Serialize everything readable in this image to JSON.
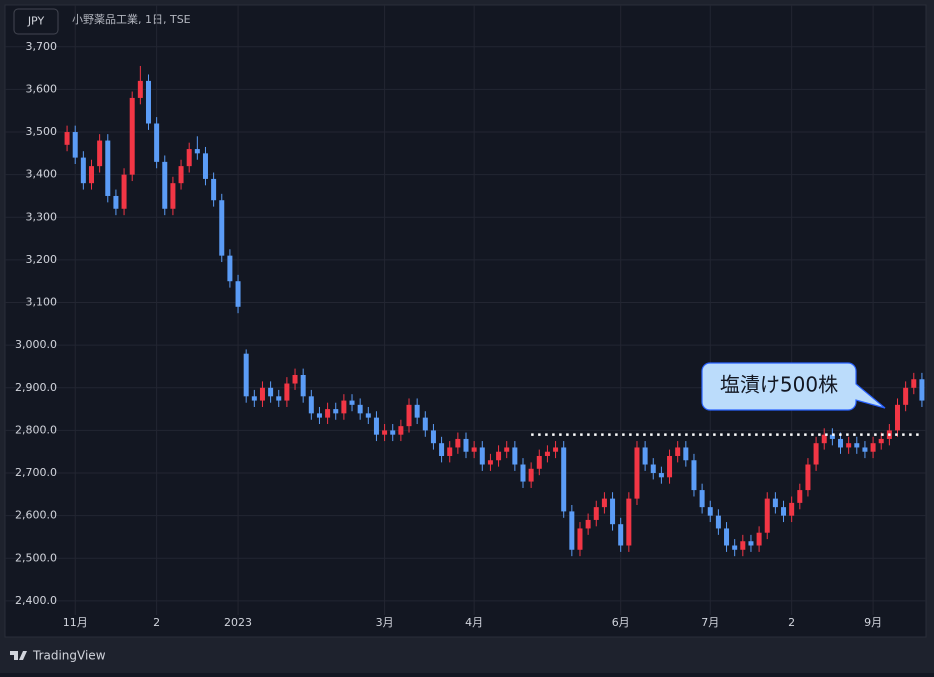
{
  "header": {
    "currency": "JPY",
    "title": "小野薬品工業, 1日, TSE"
  },
  "footer": {
    "brand": "TradingView"
  },
  "chart_data": {
    "type": "candlestick",
    "up_color": "#f23645",
    "down_color": "#5b9cf6",
    "ylim": [
      2374,
      3798
    ],
    "yticks": [
      {
        "value": 2400,
        "label": "2,400.0"
      },
      {
        "value": 2500,
        "label": "2,500.0"
      },
      {
        "value": 2600,
        "label": "2,600.0"
      },
      {
        "value": 2700,
        "label": "2,700.0"
      },
      {
        "value": 2800,
        "label": "2,800.0"
      },
      {
        "value": 2900,
        "label": "2,900.0"
      },
      {
        "value": 3000,
        "label": "3,000.0"
      },
      {
        "value": 3100,
        "label": "3,100"
      },
      {
        "value": 3200,
        "label": "3,200"
      },
      {
        "value": 3300,
        "label": "3,300"
      },
      {
        "value": 3400,
        "label": "3,400"
      },
      {
        "value": 3500,
        "label": "3,500"
      },
      {
        "value": 3600,
        "label": "3,600"
      },
      {
        "value": 3700,
        "label": "3,700"
      }
    ],
    "grid": true,
    "categories": [
      null,
      "11月",
      null,
      null,
      null,
      null,
      null,
      null,
      null,
      null,
      null,
      "2",
      null,
      null,
      null,
      null,
      null,
      null,
      null,
      null,
      null,
      "2023",
      null,
      null,
      null,
      null,
      null,
      null,
      null,
      null,
      null,
      null,
      null,
      null,
      null,
      null,
      null,
      null,
      null,
      "3月",
      null,
      null,
      null,
      null,
      null,
      null,
      null,
      null,
      null,
      null,
      "4月",
      null,
      null,
      null,
      null,
      null,
      null,
      null,
      null,
      null,
      null,
      null,
      null,
      null,
      null,
      null,
      null,
      null,
      "6月",
      null,
      null,
      null,
      null,
      null,
      null,
      null,
      null,
      null,
      null,
      "7月",
      null,
      null,
      null,
      null,
      null,
      null,
      null,
      null,
      null,
      "2",
      null,
      null,
      null,
      null,
      null,
      null,
      null,
      null,
      null,
      "9月",
      null,
      null,
      null,
      null,
      null,
      null
    ],
    "ohlc": [
      [
        3470,
        3515,
        3455,
        3500
      ],
      [
        3500,
        3515,
        3425,
        3440
      ],
      [
        3440,
        3455,
        3365,
        3380
      ],
      [
        3380,
        3435,
        3365,
        3420
      ],
      [
        3420,
        3495,
        3405,
        3480
      ],
      [
        3480,
        3495,
        3335,
        3350
      ],
      [
        3350,
        3365,
        3305,
        3320
      ],
      [
        3320,
        3415,
        3305,
        3400
      ],
      [
        3400,
        3595,
        3385,
        3580
      ],
      [
        3580,
        3655,
        3565,
        3620
      ],
      [
        3620,
        3635,
        3505,
        3520
      ],
      [
        3520,
        3535,
        3415,
        3430
      ],
      [
        3430,
        3445,
        3305,
        3320
      ],
      [
        3320,
        3395,
        3305,
        3380
      ],
      [
        3380,
        3435,
        3365,
        3420
      ],
      [
        3420,
        3475,
        3405,
        3460
      ],
      [
        3460,
        3490,
        3435,
        3450
      ],
      [
        3450,
        3465,
        3375,
        3390
      ],
      [
        3390,
        3405,
        3325,
        3340
      ],
      [
        3340,
        3355,
        3195,
        3210
      ],
      [
        3210,
        3225,
        3135,
        3150
      ],
      [
        3150,
        3165,
        3075,
        3090
      ],
      [
        2980,
        2990,
        2865,
        2880
      ],
      [
        2880,
        2895,
        2855,
        2870
      ],
      [
        2870,
        2915,
        2855,
        2900
      ],
      [
        2900,
        2915,
        2865,
        2880
      ],
      [
        2880,
        2895,
        2855,
        2870
      ],
      [
        2870,
        2925,
        2855,
        2910
      ],
      [
        2910,
        2945,
        2895,
        2930
      ],
      [
        2930,
        2945,
        2865,
        2880
      ],
      [
        2880,
        2895,
        2825,
        2840
      ],
      [
        2840,
        2855,
        2815,
        2830
      ],
      [
        2830,
        2865,
        2815,
        2850
      ],
      [
        2850,
        2865,
        2825,
        2840
      ],
      [
        2840,
        2885,
        2825,
        2870
      ],
      [
        2870,
        2885,
        2845,
        2860
      ],
      [
        2860,
        2875,
        2825,
        2840
      ],
      [
        2840,
        2855,
        2815,
        2830
      ],
      [
        2830,
        2845,
        2775,
        2790
      ],
      [
        2790,
        2815,
        2775,
        2800
      ],
      [
        2800,
        2815,
        2775,
        2790
      ],
      [
        2790,
        2825,
        2775,
        2810
      ],
      [
        2810,
        2875,
        2795,
        2860
      ],
      [
        2860,
        2875,
        2815,
        2830
      ],
      [
        2830,
        2845,
        2785,
        2800
      ],
      [
        2800,
        2815,
        2755,
        2770
      ],
      [
        2770,
        2785,
        2725,
        2740
      ],
      [
        2740,
        2775,
        2725,
        2760
      ],
      [
        2760,
        2795,
        2745,
        2780
      ],
      [
        2780,
        2795,
        2735,
        2750
      ],
      [
        2750,
        2775,
        2735,
        2760
      ],
      [
        2760,
        2775,
        2705,
        2720
      ],
      [
        2720,
        2745,
        2705,
        2730
      ],
      [
        2730,
        2765,
        2715,
        2750
      ],
      [
        2750,
        2775,
        2735,
        2760
      ],
      [
        2760,
        2775,
        2705,
        2720
      ],
      [
        2720,
        2735,
        2665,
        2680
      ],
      [
        2680,
        2725,
        2665,
        2710
      ],
      [
        2710,
        2755,
        2695,
        2740
      ],
      [
        2740,
        2765,
        2725,
        2750
      ],
      [
        2750,
        2775,
        2735,
        2760
      ],
      [
        2760,
        2775,
        2595,
        2610
      ],
      [
        2610,
        2625,
        2505,
        2520
      ],
      [
        2520,
        2585,
        2505,
        2570
      ],
      [
        2570,
        2605,
        2555,
        2590
      ],
      [
        2590,
        2635,
        2575,
        2620
      ],
      [
        2620,
        2655,
        2605,
        2640
      ],
      [
        2640,
        2655,
        2565,
        2580
      ],
      [
        2580,
        2595,
        2515,
        2530
      ],
      [
        2530,
        2655,
        2515,
        2640
      ],
      [
        2640,
        2775,
        2625,
        2760
      ],
      [
        2760,
        2775,
        2705,
        2720
      ],
      [
        2720,
        2735,
        2685,
        2700
      ],
      [
        2700,
        2715,
        2675,
        2690
      ],
      [
        2690,
        2755,
        2675,
        2740
      ],
      [
        2740,
        2775,
        2725,
        2760
      ],
      [
        2760,
        2775,
        2715,
        2730
      ],
      [
        2730,
        2745,
        2645,
        2660
      ],
      [
        2660,
        2675,
        2605,
        2620
      ],
      [
        2620,
        2635,
        2585,
        2600
      ],
      [
        2600,
        2615,
        2555,
        2570
      ],
      [
        2570,
        2585,
        2515,
        2530
      ],
      [
        2530,
        2545,
        2505,
        2520
      ],
      [
        2520,
        2555,
        2505,
        2540
      ],
      [
        2540,
        2555,
        2515,
        2530
      ],
      [
        2530,
        2575,
        2515,
        2560
      ],
      [
        2560,
        2655,
        2545,
        2640
      ],
      [
        2640,
        2655,
        2605,
        2620
      ],
      [
        2620,
        2635,
        2585,
        2600
      ],
      [
        2600,
        2645,
        2585,
        2630
      ],
      [
        2630,
        2675,
        2615,
        2660
      ],
      [
        2660,
        2735,
        2645,
        2720
      ],
      [
        2720,
        2785,
        2705,
        2770
      ],
      [
        2770,
        2805,
        2755,
        2790
      ],
      [
        2790,
        2805,
        2765,
        2780
      ],
      [
        2780,
        2795,
        2745,
        2760
      ],
      [
        2760,
        2785,
        2745,
        2770
      ],
      [
        2770,
        2785,
        2745,
        2760
      ],
      [
        2760,
        2775,
        2735,
        2750
      ],
      [
        2750,
        2785,
        2735,
        2770
      ],
      [
        2770,
        2795,
        2755,
        2780
      ],
      [
        2780,
        2815,
        2765,
        2800
      ],
      [
        2800,
        2875,
        2785,
        2860
      ],
      [
        2860,
        2915,
        2845,
        2900
      ],
      [
        2900,
        2935,
        2885,
        2920
      ],
      [
        2920,
        2935,
        2855,
        2870
      ]
    ],
    "hline": {
      "value": 2790,
      "from_index": 57
    },
    "annotation": "塩漬け500株"
  }
}
